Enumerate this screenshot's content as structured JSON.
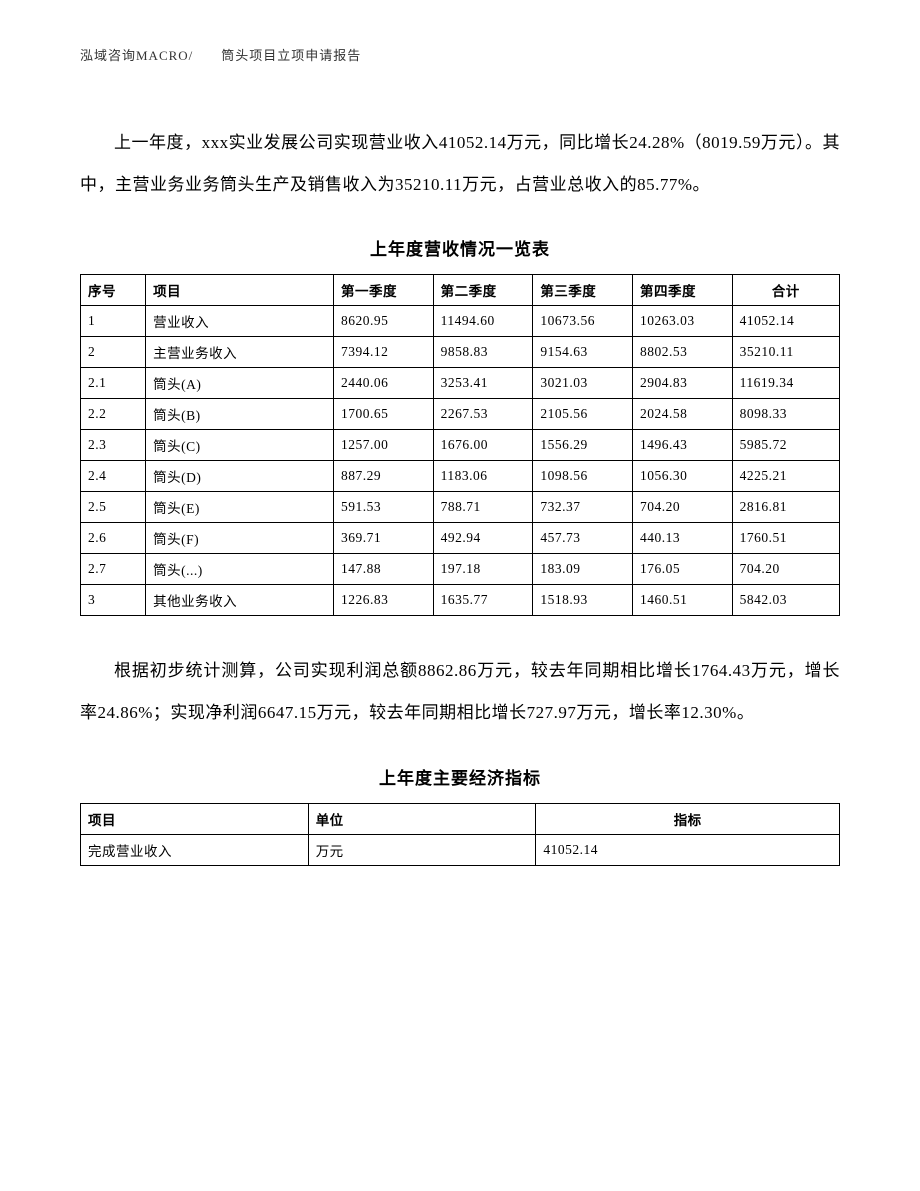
{
  "header": "泓域咨询MACRO/　　筒头项目立项申请报告",
  "paragraph1": "上一年度，xxx实业发展公司实现营业收入41052.14万元，同比增长24.28%（8019.59万元）。其中，主营业务业务筒头生产及销售收入为35210.11万元，占营业总收入的85.77%。",
  "table1": {
    "title": "上年度营收情况一览表",
    "columns": [
      "序号",
      "项目",
      "第一季度",
      "第二季度",
      "第三季度",
      "第四季度",
      "合计"
    ],
    "rows": [
      [
        "1",
        "营业收入",
        "8620.95",
        "11494.60",
        "10673.56",
        "10263.03",
        "41052.14"
      ],
      [
        "2",
        "主营业务收入",
        "7394.12",
        "9858.83",
        "9154.63",
        "8802.53",
        "35210.11"
      ],
      [
        "2.1",
        "筒头(A)",
        "2440.06",
        "3253.41",
        "3021.03",
        "2904.83",
        "11619.34"
      ],
      [
        "2.2",
        "筒头(B)",
        "1700.65",
        "2267.53",
        "2105.56",
        "2024.58",
        "8098.33"
      ],
      [
        "2.3",
        "筒头(C)",
        "1257.00",
        "1676.00",
        "1556.29",
        "1496.43",
        "5985.72"
      ],
      [
        "2.4",
        "筒头(D)",
        "887.29",
        "1183.06",
        "1098.56",
        "1056.30",
        "4225.21"
      ],
      [
        "2.5",
        "筒头(E)",
        "591.53",
        "788.71",
        "732.37",
        "704.20",
        "2816.81"
      ],
      [
        "2.6",
        "筒头(F)",
        "369.71",
        "492.94",
        "457.73",
        "440.13",
        "1760.51"
      ],
      [
        "2.7",
        "筒头(...)",
        "147.88",
        "197.18",
        "183.09",
        "176.05",
        "704.20"
      ],
      [
        "3",
        "其他业务收入",
        "1226.83",
        "1635.77",
        "1518.93",
        "1460.51",
        "5842.03"
      ]
    ]
  },
  "paragraph2": "根据初步统计测算，公司实现利润总额8862.86万元，较去年同期相比增长1764.43万元，增长率24.86%；实现净利润6647.15万元，较去年同期相比增长727.97万元，增长率12.30%。",
  "table2": {
    "title": "上年度主要经济指标",
    "columns": [
      "项目",
      "单位",
      "指标"
    ],
    "rows": [
      [
        "完成营业收入",
        "万元",
        "41052.14"
      ]
    ]
  }
}
